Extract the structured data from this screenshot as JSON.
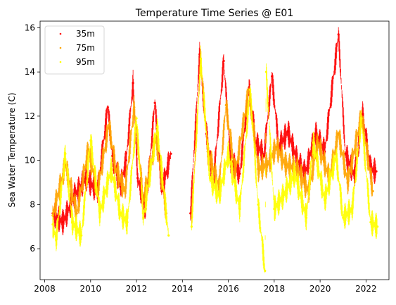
{
  "chart_data": {
    "type": "scatter",
    "title": "Temperature Time Series @ E01",
    "xlabel": "",
    "ylabel": "Sea Water Temperature (C)",
    "xlim": [
      2007.8,
      2023.0
    ],
    "ylim": [
      4.6,
      16.3
    ],
    "x_ticks": [
      2008,
      2010,
      2012,
      2014,
      2016,
      2018,
      2020,
      2022
    ],
    "x_tick_labels": [
      "2008",
      "2010",
      "2012",
      "2014",
      "2016",
      "2018",
      "2020",
      "2022"
    ],
    "y_ticks": [
      6,
      8,
      10,
      12,
      14,
      16
    ],
    "y_tick_labels": [
      "6",
      "8",
      "10",
      "12",
      "14",
      "16"
    ],
    "grid": false,
    "legend_position": "top-left",
    "series": [
      {
        "name": "35m",
        "color": "#ff0000",
        "values": [
          [
            2008.35,
            7.6
          ],
          [
            2008.8,
            7.2
          ],
          [
            2009.3,
            8.4
          ],
          [
            2009.8,
            9.2
          ],
          [
            2010.3,
            8.6
          ],
          [
            2010.75,
            12.4
          ],
          [
            2010.95,
            10.2
          ],
          [
            2011.3,
            8.8
          ],
          [
            2011.55,
            10.0
          ],
          [
            2011.85,
            13.5
          ],
          [
            2012.05,
            9.2
          ],
          [
            2012.4,
            7.8
          ],
          [
            2012.8,
            12.6
          ],
          [
            2013.1,
            8.6
          ],
          [
            2013.5,
            10.3
          ],
          [
            2014.35,
            7.6
          ],
          [
            2014.75,
            14.8
          ],
          [
            2015.05,
            11.2
          ],
          [
            2015.35,
            9.0
          ],
          [
            2015.8,
            14.5
          ],
          [
            2016.1,
            10.0
          ],
          [
            2016.5,
            9.4
          ],
          [
            2016.9,
            13.3
          ],
          [
            2017.2,
            10.8
          ],
          [
            2017.55,
            10.2
          ],
          [
            2017.9,
            13.8
          ],
          [
            2018.2,
            10.6
          ],
          [
            2018.6,
            11.3
          ],
          [
            2019.0,
            10.0
          ],
          [
            2019.35,
            9.4
          ],
          [
            2019.8,
            11.2
          ],
          [
            2020.2,
            10.4
          ],
          [
            2020.8,
            15.7
          ],
          [
            2021.1,
            10.3
          ],
          [
            2021.5,
            9.3
          ],
          [
            2021.85,
            12.1
          ],
          [
            2022.2,
            9.6
          ],
          [
            2022.45,
            9.5
          ]
        ]
      },
      {
        "name": "75m",
        "color": "#ffa500",
        "values": [
          [
            2008.35,
            7.5
          ],
          [
            2008.9,
            9.8
          ],
          [
            2009.4,
            7.6
          ],
          [
            2009.9,
            10.5
          ],
          [
            2010.3,
            8.6
          ],
          [
            2010.8,
            11.6
          ],
          [
            2011.1,
            9.6
          ],
          [
            2011.5,
            8.6
          ],
          [
            2011.9,
            12.4
          ],
          [
            2012.3,
            8.2
          ],
          [
            2012.85,
            11.0
          ],
          [
            2013.3,
            7.6
          ],
          [
            2014.4,
            7.4
          ],
          [
            2014.8,
            14.6
          ],
          [
            2015.1,
            10.4
          ],
          [
            2015.6,
            8.8
          ],
          [
            2015.9,
            12.5
          ],
          [
            2016.3,
            9.4
          ],
          [
            2016.9,
            13.2
          ],
          [
            2017.3,
            9.6
          ],
          [
            2017.7,
            9.8
          ],
          [
            2018.1,
            10.6
          ],
          [
            2018.5,
            9.8
          ],
          [
            2019.0,
            9.6
          ],
          [
            2019.5,
            8.6
          ],
          [
            2019.9,
            10.8
          ],
          [
            2020.4,
            9.2
          ],
          [
            2020.8,
            11.2
          ],
          [
            2021.2,
            9.0
          ],
          [
            2021.8,
            12.0
          ],
          [
            2022.3,
            8.6
          ]
        ]
      },
      {
        "name": "95m",
        "color": "#ffff00",
        "values": [
          [
            2008.35,
            7.1
          ],
          [
            2008.5,
            6.4
          ],
          [
            2008.9,
            10.3
          ],
          [
            2009.2,
            7.2
          ],
          [
            2009.6,
            6.6
          ],
          [
            2010.0,
            10.9
          ],
          [
            2010.4,
            7.6
          ],
          [
            2010.9,
            9.6
          ],
          [
            2011.3,
            7.6
          ],
          [
            2011.6,
            7.2
          ],
          [
            2012.0,
            11.9
          ],
          [
            2012.3,
            7.4
          ],
          [
            2012.9,
            11.5
          ],
          [
            2013.4,
            6.6
          ],
          [
            2014.4,
            7.0
          ],
          [
            2014.8,
            14.6
          ],
          [
            2015.2,
            9.2
          ],
          [
            2015.6,
            8.4
          ],
          [
            2016.0,
            10.3
          ],
          [
            2016.5,
            7.8
          ],
          [
            2016.95,
            13.2
          ],
          [
            2017.3,
            8.0
          ],
          [
            2017.6,
            5.0
          ],
          [
            2017.65,
            14.0
          ],
          [
            2018.0,
            7.8
          ],
          [
            2018.4,
            8.4
          ],
          [
            2018.9,
            9.4
          ],
          [
            2019.4,
            7.4
          ],
          [
            2019.7,
            10.8
          ],
          [
            2020.2,
            8.2
          ],
          [
            2020.7,
            10.2
          ],
          [
            2021.0,
            7.4
          ],
          [
            2021.4,
            7.8
          ],
          [
            2021.8,
            11.9
          ],
          [
            2022.2,
            7.2
          ],
          [
            2022.5,
            7.0
          ]
        ]
      }
    ]
  }
}
